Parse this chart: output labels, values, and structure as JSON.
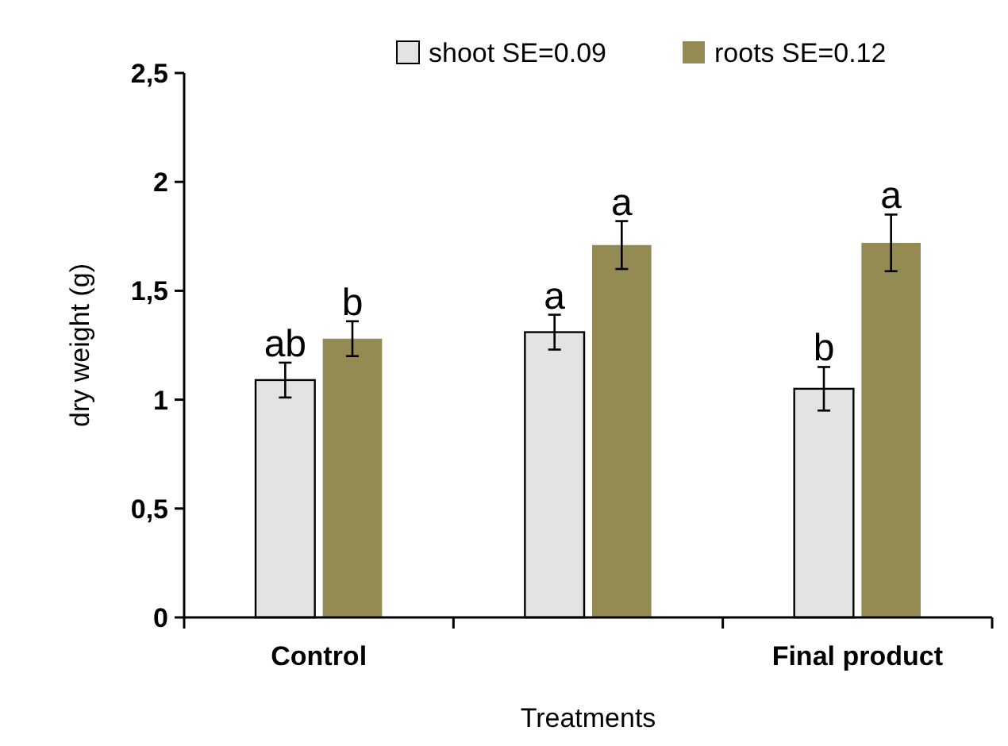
{
  "chart_data": {
    "type": "bar",
    "xlabel": "Treatments",
    "ylabel": "dry weight (g)",
    "categories": [
      "Control",
      null,
      "Final product"
    ],
    "series": [
      {
        "name": "shoot SE=0.09",
        "color": "#e3e3e3",
        "values": [
          1.09,
          1.31,
          1.05
        ],
        "errors": [
          0.08,
          0.08,
          0.1
        ],
        "value_labels": [
          "ab",
          "a",
          "b"
        ]
      },
      {
        "name": "roots SE=0.12",
        "color": "#948a54",
        "values": [
          1.28,
          1.71,
          1.72
        ],
        "errors": [
          0.08,
          0.11,
          0.13
        ],
        "value_labels": [
          "b",
          "a",
          "a"
        ]
      }
    ],
    "ylim": [
      0,
      2.5
    ],
    "yticks": [
      0,
      {
        "value": 0.5,
        "label": "0,5"
      },
      1,
      {
        "value": 1.5,
        "label": "1,5"
      },
      2,
      {
        "value": 2.5,
        "label": "2,5"
      }
    ],
    "grid": false,
    "legend": "top right"
  }
}
